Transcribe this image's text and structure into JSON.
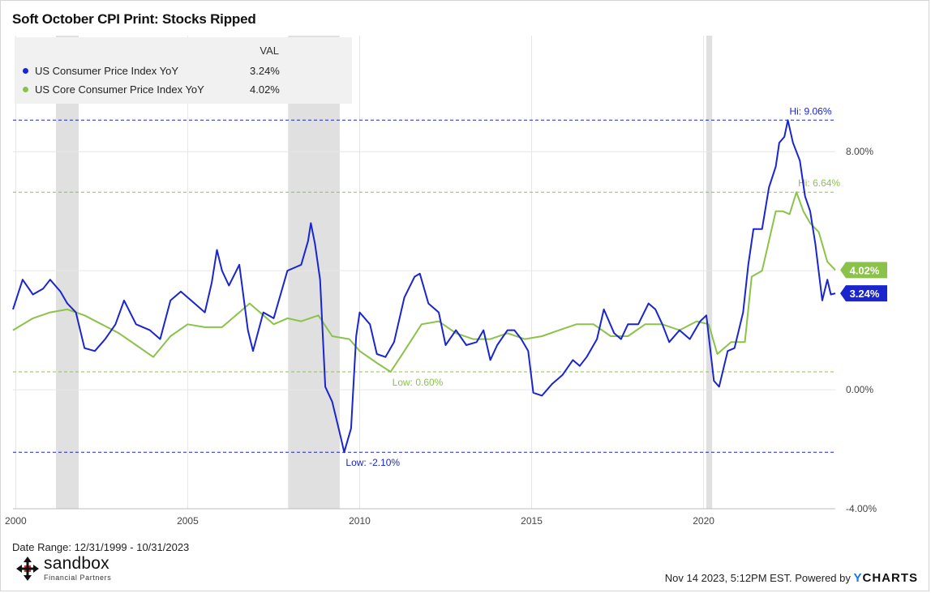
{
  "title": "Soft October CPI Print: Stocks Ripped",
  "legend": {
    "header": "VAL",
    "items": [
      {
        "name": "US Consumer Price Index YoY",
        "value": "3.24%",
        "color": "#1a25cf"
      },
      {
        "name": "US Core Consumer Price Index YoY",
        "value": "4.02%",
        "color": "#8bc34a"
      }
    ]
  },
  "footer": {
    "date_range": "Date Range: 12/31/1999 - 10/31/2023",
    "brand": "sandbox",
    "brand_sub": "Financial Partners",
    "credit_prefix": "Nov 14 2023, 5:12PM EST. Powered by ",
    "credit_brand_y": "Y",
    "credit_brand": "CHARTS"
  },
  "chart_data": {
    "type": "line",
    "title": "Soft October CPI Print: Stocks Ripped",
    "xlabel": "",
    "ylabel": "",
    "xlim": [
      1999.92,
      2023.83
    ],
    "ylim": [
      -4.0,
      11.9
    ],
    "x_ticks": [
      {
        "v": 2000,
        "label": "2000"
      },
      {
        "v": 2005,
        "label": "2005"
      },
      {
        "v": 2010,
        "label": "2010"
      },
      {
        "v": 2015,
        "label": "2015"
      },
      {
        "v": 2020,
        "label": "2020"
      }
    ],
    "y_ticks": [
      {
        "v": 8,
        "label": "8.00%"
      },
      {
        "v": 4,
        "label": "4.00%"
      },
      {
        "v": 0,
        "label": "0.00%"
      },
      {
        "v": -4,
        "label": "-4.00%"
      }
    ],
    "recessions": [
      [
        2001.17,
        2001.83
      ],
      [
        2007.92,
        2009.42
      ],
      [
        2020.08,
        2020.25
      ]
    ],
    "series": [
      {
        "name": "US Consumer Price Index YoY",
        "color": "#1a25cf",
        "last_label": "3.24%",
        "points": [
          [
            1999.92,
            2.7
          ],
          [
            2000.2,
            3.7
          ],
          [
            2000.5,
            3.2
          ],
          [
            2000.8,
            3.4
          ],
          [
            2001.0,
            3.7
          ],
          [
            2001.3,
            3.3
          ],
          [
            2001.5,
            2.9
          ],
          [
            2001.75,
            2.6
          ],
          [
            2002.0,
            1.4
          ],
          [
            2002.3,
            1.3
          ],
          [
            2002.6,
            1.7
          ],
          [
            2002.9,
            2.2
          ],
          [
            2003.15,
            3.0
          ],
          [
            2003.5,
            2.2
          ],
          [
            2003.9,
            2.0
          ],
          [
            2004.2,
            1.7
          ],
          [
            2004.5,
            3.0
          ],
          [
            2004.8,
            3.3
          ],
          [
            2005.1,
            3.0
          ],
          [
            2005.5,
            2.6
          ],
          [
            2005.7,
            3.6
          ],
          [
            2005.85,
            4.7
          ],
          [
            2006.0,
            4.0
          ],
          [
            2006.2,
            3.5
          ],
          [
            2006.5,
            4.2
          ],
          [
            2006.75,
            2.0
          ],
          [
            2006.9,
            1.3
          ],
          [
            2007.2,
            2.6
          ],
          [
            2007.5,
            2.4
          ],
          [
            2007.9,
            4.0
          ],
          [
            2008.1,
            4.1
          ],
          [
            2008.3,
            4.2
          ],
          [
            2008.5,
            5.0
          ],
          [
            2008.58,
            5.6
          ],
          [
            2008.7,
            4.9
          ],
          [
            2008.85,
            3.7
          ],
          [
            2009.0,
            0.1
          ],
          [
            2009.2,
            -0.4
          ],
          [
            2009.45,
            -1.6
          ],
          [
            2009.55,
            -2.1
          ],
          [
            2009.75,
            -1.3
          ],
          [
            2009.9,
            1.8
          ],
          [
            2010.0,
            2.6
          ],
          [
            2010.3,
            2.2
          ],
          [
            2010.5,
            1.2
          ],
          [
            2010.75,
            1.1
          ],
          [
            2011.0,
            1.6
          ],
          [
            2011.3,
            3.1
          ],
          [
            2011.6,
            3.8
          ],
          [
            2011.75,
            3.9
          ],
          [
            2012.0,
            2.9
          ],
          [
            2012.3,
            2.6
          ],
          [
            2012.5,
            1.5
          ],
          [
            2012.8,
            2.0
          ],
          [
            2013.1,
            1.5
          ],
          [
            2013.4,
            1.6
          ],
          [
            2013.6,
            2.0
          ],
          [
            2013.8,
            1.0
          ],
          [
            2014.0,
            1.5
          ],
          [
            2014.3,
            2.0
          ],
          [
            2014.5,
            2.0
          ],
          [
            2014.7,
            1.7
          ],
          [
            2014.9,
            1.3
          ],
          [
            2015.05,
            -0.1
          ],
          [
            2015.3,
            -0.2
          ],
          [
            2015.6,
            0.2
          ],
          [
            2015.9,
            0.5
          ],
          [
            2016.2,
            1.0
          ],
          [
            2016.4,
            0.8
          ],
          [
            2016.6,
            1.1
          ],
          [
            2016.9,
            1.7
          ],
          [
            2017.1,
            2.7
          ],
          [
            2017.4,
            1.9
          ],
          [
            2017.6,
            1.7
          ],
          [
            2017.8,
            2.2
          ],
          [
            2018.1,
            2.2
          ],
          [
            2018.4,
            2.9
          ],
          [
            2018.6,
            2.7
          ],
          [
            2018.8,
            2.2
          ],
          [
            2019.0,
            1.6
          ],
          [
            2019.3,
            2.0
          ],
          [
            2019.6,
            1.7
          ],
          [
            2019.9,
            2.3
          ],
          [
            2020.08,
            2.5
          ],
          [
            2020.3,
            0.3
          ],
          [
            2020.45,
            0.1
          ],
          [
            2020.7,
            1.3
          ],
          [
            2020.9,
            1.4
          ],
          [
            2021.15,
            2.6
          ],
          [
            2021.3,
            4.2
          ],
          [
            2021.45,
            5.4
          ],
          [
            2021.7,
            5.4
          ],
          [
            2021.9,
            6.8
          ],
          [
            2022.1,
            7.5
          ],
          [
            2022.2,
            8.3
          ],
          [
            2022.35,
            8.5
          ],
          [
            2022.45,
            9.06
          ],
          [
            2022.6,
            8.3
          ],
          [
            2022.8,
            7.7
          ],
          [
            2022.95,
            6.5
          ],
          [
            2023.1,
            6.0
          ],
          [
            2023.25,
            4.9
          ],
          [
            2023.45,
            3.0
          ],
          [
            2023.6,
            3.7
          ],
          [
            2023.7,
            3.2
          ],
          [
            2023.83,
            3.24
          ]
        ]
      },
      {
        "name": "US Core Consumer Price Index YoY",
        "color": "#8bc34a",
        "last_label": "4.02%",
        "points": [
          [
            1999.92,
            2.0
          ],
          [
            2000.5,
            2.4
          ],
          [
            2001.0,
            2.6
          ],
          [
            2001.5,
            2.7
          ],
          [
            2002.0,
            2.5
          ],
          [
            2002.5,
            2.2
          ],
          [
            2003.0,
            1.9
          ],
          [
            2003.5,
            1.5
          ],
          [
            2004.0,
            1.1
          ],
          [
            2004.5,
            1.8
          ],
          [
            2005.0,
            2.2
          ],
          [
            2005.5,
            2.1
          ],
          [
            2006.0,
            2.1
          ],
          [
            2006.5,
            2.6
          ],
          [
            2006.8,
            2.9
          ],
          [
            2007.0,
            2.7
          ],
          [
            2007.5,
            2.2
          ],
          [
            2007.9,
            2.4
          ],
          [
            2008.3,
            2.3
          ],
          [
            2008.8,
            2.5
          ],
          [
            2009.2,
            1.8
          ],
          [
            2009.7,
            1.7
          ],
          [
            2010.0,
            1.3
          ],
          [
            2010.5,
            0.9
          ],
          [
            2010.9,
            0.6
          ],
          [
            2011.3,
            1.3
          ],
          [
            2011.8,
            2.2
          ],
          [
            2012.3,
            2.3
          ],
          [
            2012.8,
            1.9
          ],
          [
            2013.3,
            1.7
          ],
          [
            2013.8,
            1.7
          ],
          [
            2014.3,
            1.9
          ],
          [
            2014.8,
            1.7
          ],
          [
            2015.3,
            1.8
          ],
          [
            2015.8,
            2.0
          ],
          [
            2016.3,
            2.2
          ],
          [
            2016.8,
            2.2
          ],
          [
            2017.3,
            1.8
          ],
          [
            2017.8,
            1.8
          ],
          [
            2018.3,
            2.2
          ],
          [
            2018.8,
            2.2
          ],
          [
            2019.3,
            2.0
          ],
          [
            2019.8,
            2.3
          ],
          [
            2020.15,
            2.2
          ],
          [
            2020.4,
            1.2
          ],
          [
            2020.8,
            1.6
          ],
          [
            2021.2,
            1.6
          ],
          [
            2021.4,
            3.8
          ],
          [
            2021.7,
            4.0
          ],
          [
            2021.9,
            5.0
          ],
          [
            2022.1,
            6.0
          ],
          [
            2022.3,
            6.0
          ],
          [
            2022.5,
            5.9
          ],
          [
            2022.7,
            6.64
          ],
          [
            2022.9,
            6.0
          ],
          [
            2023.1,
            5.6
          ],
          [
            2023.35,
            5.3
          ],
          [
            2023.6,
            4.3
          ],
          [
            2023.83,
            4.02
          ]
        ]
      }
    ],
    "reference_lines": [
      {
        "value": 9.06,
        "label": "Hi: 9.06%",
        "color": "#1a25cf",
        "label_x": 2022.45
      },
      {
        "value": 6.64,
        "label": "Hi: 6.64%",
        "color": "#8bc34a",
        "label_x": 2022.7
      },
      {
        "value": 0.6,
        "label": "Low: 0.60%",
        "color": "#8bc34a",
        "label_x": 2010.9
      },
      {
        "value": -2.1,
        "label": "Low: -2.10%",
        "color": "#1a25cf",
        "label_x": 2009.55
      }
    ]
  }
}
